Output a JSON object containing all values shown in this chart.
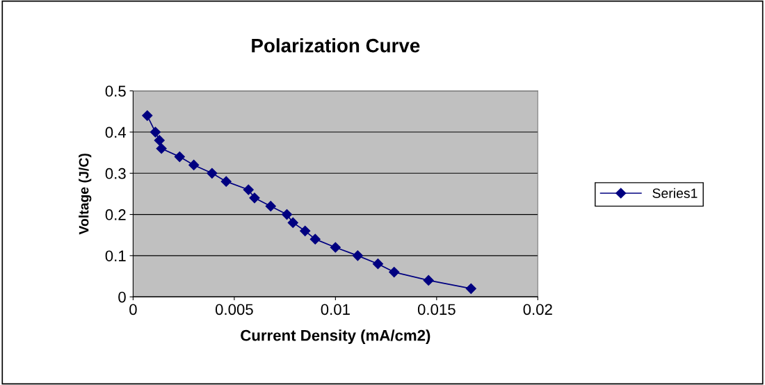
{
  "chart_data": {
    "type": "line",
    "title": "Polarization Curve",
    "xlabel": "Current Density (mA/cm2)",
    "ylabel": "Voltage (J/C)",
    "series": [
      {
        "name": "Series1",
        "color": "#000080",
        "x": [
          0.0007,
          0.0011,
          0.0013,
          0.0014,
          0.0023,
          0.003,
          0.0039,
          0.0046,
          0.0057,
          0.006,
          0.0068,
          0.0076,
          0.0079,
          0.0085,
          0.009,
          0.01,
          0.0111,
          0.0121,
          0.0129,
          0.0146,
          0.0167
        ],
        "values": [
          0.44,
          0.4,
          0.38,
          0.36,
          0.34,
          0.32,
          0.3,
          0.28,
          0.26,
          0.24,
          0.22,
          0.2,
          0.18,
          0.16,
          0.14,
          0.12,
          0.1,
          0.08,
          0.06,
          0.04,
          0.02
        ]
      }
    ],
    "xlim": [
      0,
      0.02
    ],
    "xticks": [
      0,
      0.005,
      0.01,
      0.015,
      0.02
    ],
    "ylim": [
      0,
      0.5
    ],
    "yticks": [
      0,
      0.1,
      0.2,
      0.3,
      0.4,
      0.5
    ],
    "grid": "y",
    "legend": "right",
    "marker": "diamond",
    "line_style": "solid"
  }
}
